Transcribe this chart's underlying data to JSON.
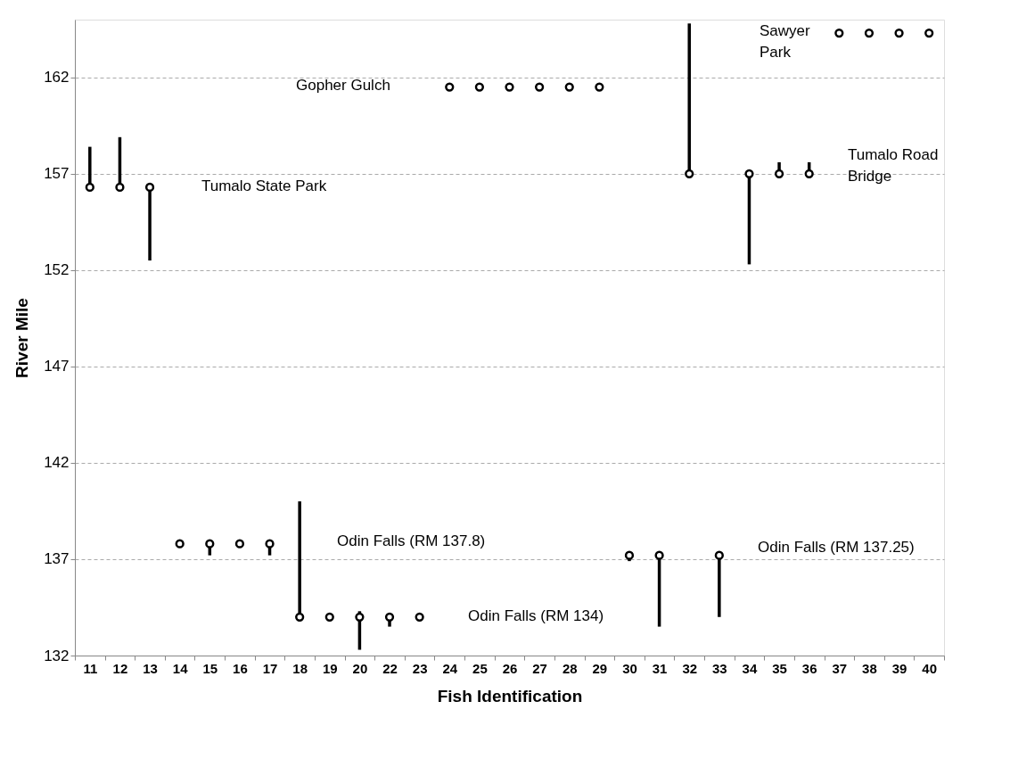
{
  "chart_data": {
    "type": "scatter",
    "xlabel": "Fish Identification",
    "ylabel": "River Mile",
    "categories": [
      "11",
      "12",
      "13",
      "14",
      "15",
      "16",
      "17",
      "18",
      "19",
      "20",
      "22",
      "23",
      "24",
      "25",
      "26",
      "27",
      "28",
      "29",
      "30",
      "31",
      "32",
      "33",
      "34",
      "35",
      "36",
      "37",
      "38",
      "39",
      "40"
    ],
    "series": [
      {
        "color": "#000000",
        "values": [
          156.3,
          156.3,
          156.3,
          137.8,
          137.8,
          137.8,
          137.8,
          134.0,
          134.0,
          134.0,
          134.0,
          134.0,
          161.5,
          161.5,
          161.5,
          161.5,
          161.5,
          161.5,
          137.2,
          137.2,
          157.0,
          137.2,
          157.0,
          157.0,
          157.0,
          164.3,
          164.3,
          164.3,
          164.3
        ],
        "errors": [
          [
            156.3,
            158.4
          ],
          [
            156.3,
            158.9
          ],
          [
            152.5,
            156.3
          ],
          null,
          [
            137.2,
            137.8
          ],
          null,
          [
            137.2,
            137.8
          ],
          [
            134.0,
            140.0
          ],
          null,
          [
            132.3,
            134.3
          ],
          [
            133.5,
            134.0
          ],
          null,
          null,
          null,
          null,
          null,
          null,
          null,
          [
            136.9,
            137.2
          ],
          [
            133.5,
            137.2
          ],
          [
            157.0,
            164.8
          ],
          [
            134.0,
            137.2
          ],
          [
            152.3,
            157.0
          ],
          [
            157.0,
            157.6
          ],
          [
            157.0,
            157.6
          ],
          null,
          null,
          null,
          null
        ]
      }
    ],
    "ylim": [
      132,
      165
    ],
    "yticks": [
      132,
      137,
      142,
      147,
      152,
      157,
      162
    ],
    "grid": "y",
    "marker": "circle",
    "annotations": [
      "Tumalo State Park",
      "Gopher Gulch",
      "Sawyer\nPark",
      "Tumalo Road\nBridge",
      "Odin Falls (RM 137.8)",
      "Odin Falls (RM 134)",
      "Odin Falls (RM 137.25)"
    ]
  }
}
